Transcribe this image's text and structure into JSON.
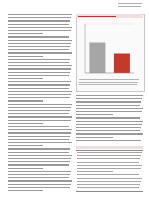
{
  "chart_data": {
    "type": "bar",
    "categories": [
      null,
      null
    ],
    "values": [
      0.62,
      0.4
    ],
    "colors": [
      "#a6a6a6",
      "#c0392b"
    ],
    "ylim": [
      0,
      1
    ],
    "yticks": [
      0,
      0.25,
      0.5,
      0.75,
      1
    ],
    "grid": true,
    "tick_labels": false
  }
}
